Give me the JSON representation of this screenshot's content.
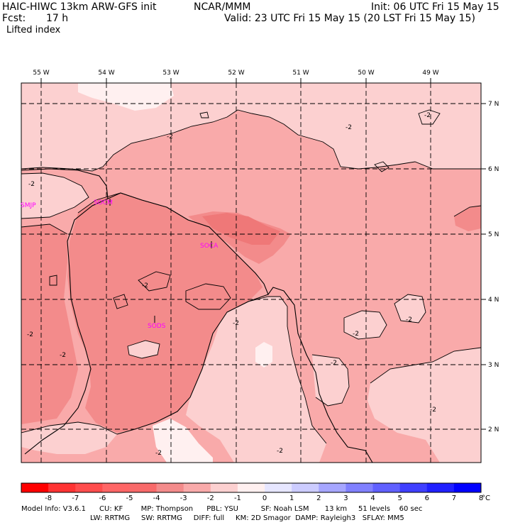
{
  "header": {
    "model": "HAIC-HIWC 13km ARW-GFS init",
    "center": "NCAR/MMM",
    "init": "Init: 06 UTC Fri 15 May 15",
    "fcst_label": "Fcst:",
    "fcst_value": "17 h",
    "valid": "Valid: 23 UTC Fri 15 May 15 (20 LST Fri 15 May 15)",
    "field": "Lifted index"
  },
  "map": {
    "lon_labels": [
      "55 W",
      "54 W",
      "53 W",
      "52 W",
      "51 W",
      "50 W",
      "49 W"
    ],
    "lat_labels": [
      "7 N",
      "6 N",
      "5 N",
      "4 N",
      "3 N",
      "2 N"
    ],
    "stations": [
      "SMJP",
      "SOCM",
      "SOCA",
      "SODS"
    ],
    "contour_label": "-2",
    "colors": {
      "lt_zero": "#fcd0d0",
      "lt_minus1": "#f9aaaa",
      "lt_minus2": "#f38b8b",
      "lt_minus3": "#ef7878",
      "lt_minus4": "#f05050",
      "zero_one": "#fff0f0",
      "station": "#ff00ff"
    }
  },
  "colorbar": {
    "ticks": [
      "-8",
      "-7",
      "-6",
      "-5",
      "-4",
      "-3",
      "-2",
      "-1",
      "0",
      "1",
      "2",
      "3",
      "4",
      "5",
      "6",
      "7",
      "8"
    ],
    "unit": "°C",
    "swatches": [
      "#ff0000",
      "#ff3333",
      "#ff4d4d",
      "#ff6666",
      "#f86a6a",
      "#f38b8b",
      "#f9aaaa",
      "#fcd0d0",
      "#fff0f0",
      "#e6e6ff",
      "#ccccff",
      "#a6a6ff",
      "#8080ff",
      "#6060ff",
      "#3f3fff",
      "#2020ff",
      "#0000ff"
    ]
  },
  "footer": {
    "line1": "Model Info: V3.6.1      CU: KF        MP: Thompson      PBL: YSU          SF: Noah LSM       13 km     51 levels    60 sec",
    "line2": "LW: RRTMG     SW: RRTMG     DIFF: full     KM: 2D Smagor  DAMP: Rayleigh3   SFLAY: MM5"
  }
}
